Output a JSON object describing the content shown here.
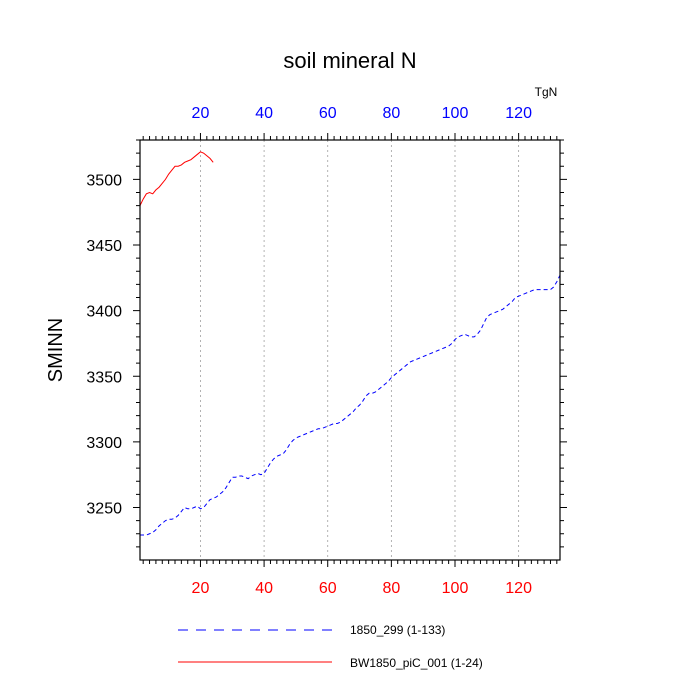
{
  "chart_data": {
    "type": "line",
    "title": "soil mineral N",
    "ylabel": "SMINN",
    "units": "TgN",
    "xlim": [
      1,
      133
    ],
    "ylim": [
      3210,
      3530
    ],
    "x_ticks": [
      20,
      40,
      60,
      80,
      100,
      120
    ],
    "y_ticks": [
      3250,
      3300,
      3350,
      3400,
      3450,
      3500
    ],
    "x_tick_labels": [
      "20",
      "40",
      "60",
      "80",
      "100",
      "120"
    ],
    "y_tick_labels": [
      "3250",
      "3300",
      "3350",
      "3400",
      "3450",
      "3500"
    ],
    "top_axis_color": "#0000ff",
    "bottom_axis_color": "#ff0000",
    "grid": "vertical-dotted",
    "legend_position": "bottom",
    "series": [
      {
        "name": "1850_299 (1-133)",
        "color": "#0000ff",
        "dash": "dashed",
        "x_start": 1,
        "values": [
          3229,
          3229,
          3229,
          3230,
          3231,
          3233,
          3236,
          3238,
          3240,
          3241,
          3241,
          3242,
          3244,
          3247,
          3250,
          3249,
          3249,
          3250,
          3251,
          3249,
          3250,
          3253,
          3256,
          3257,
          3258,
          3260,
          3262,
          3265,
          3269,
          3273,
          3273,
          3274,
          3274,
          3273,
          3272,
          3274,
          3275,
          3276,
          3275,
          3276,
          3280,
          3284,
          3287,
          3289,
          3290,
          3291,
          3294,
          3298,
          3301,
          3303,
          3304,
          3305,
          3306,
          3307,
          3308,
          3309,
          3310,
          3310,
          3311,
          3312,
          3313,
          3314,
          3314,
          3315,
          3317,
          3319,
          3321,
          3323,
          3326,
          3328,
          3331,
          3335,
          3337,
          3337,
          3338,
          3340,
          3342,
          3344,
          3346,
          3349,
          3351,
          3353,
          3355,
          3357,
          3359,
          3361,
          3362,
          3363,
          3364,
          3365,
          3366,
          3367,
          3368,
          3369,
          3370,
          3371,
          3372,
          3373,
          3375,
          3378,
          3380,
          3381,
          3382,
          3381,
          3380,
          3380,
          3382,
          3385,
          3390,
          3395,
          3397,
          3398,
          3399,
          3400,
          3401,
          3403,
          3405,
          3407,
          3410,
          3411,
          3412,
          3413,
          3414,
          3415,
          3416,
          3416,
          3416,
          3416,
          3416,
          3416,
          3418,
          3422,
          3427
        ]
      },
      {
        "name": "BW1850_piC_001 (1-24)",
        "color": "#ff0000",
        "dash": "solid",
        "x_start": 1,
        "values": [
          3480,
          3485,
          3489,
          3490,
          3489,
          3492,
          3494,
          3497,
          3500,
          3504,
          3507,
          3510,
          3510,
          3511,
          3513,
          3514,
          3515,
          3517,
          3519,
          3521,
          3520,
          3518,
          3516,
          3513
        ]
      }
    ]
  }
}
